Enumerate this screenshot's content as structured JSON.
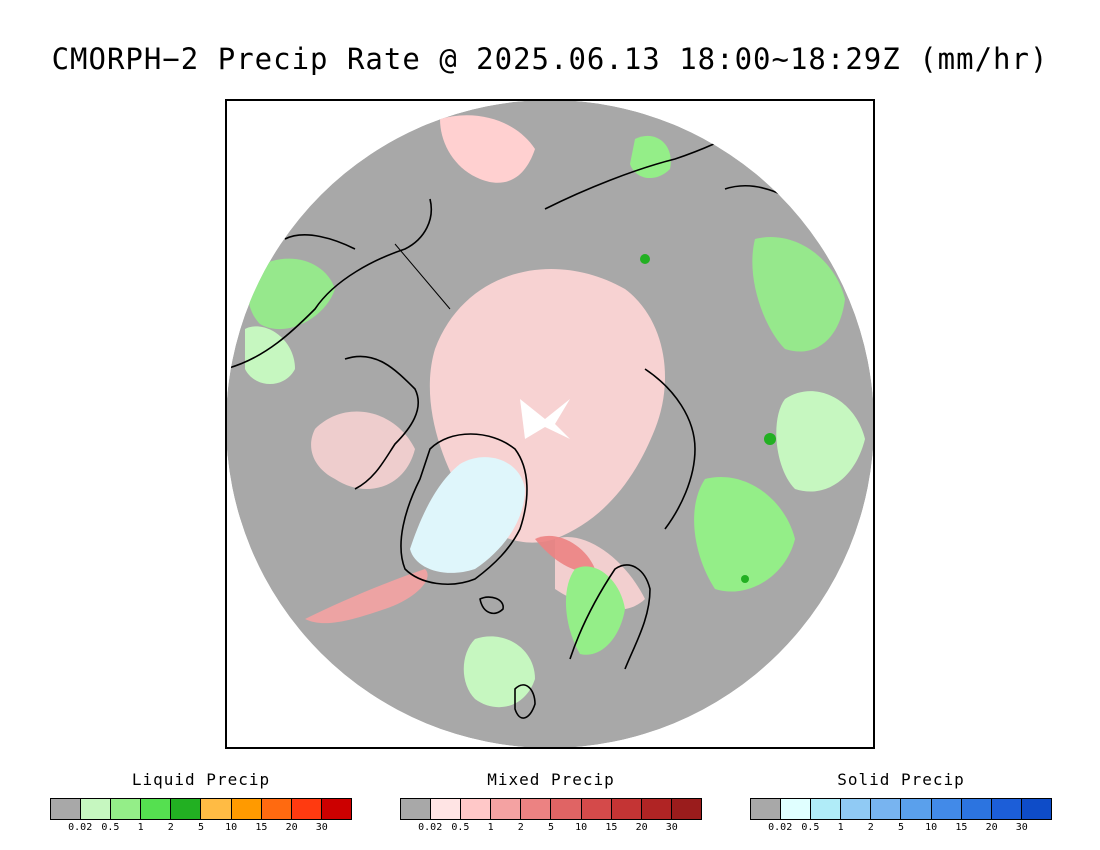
{
  "title": "CMORPH−2 Precip Rate @ 2025.06.13 18:00~18:29Z (mm/hr)",
  "map": {
    "projection": "north polar stereographic",
    "background_no_precip_color": "#a8a8a8",
    "region_labels": []
  },
  "legends": [
    {
      "name": "liquid",
      "title": "Liquid Precip",
      "colors": [
        "#a8a8a8",
        "#c6f7c0",
        "#94ee88",
        "#55e050",
        "#22b022",
        "#ffbb44",
        "#ff9a00",
        "#ff6a10",
        "#ff3a10",
        "#cc0000"
      ],
      "ticks": [
        "0.02",
        "0.5",
        "1",
        "2",
        "5",
        "10",
        "15",
        "20",
        "30"
      ]
    },
    {
      "name": "mixed",
      "title": "Mixed Precip",
      "colors": [
        "#a8a8a8",
        "#ffe4e4",
        "#ffc8c8",
        "#f4a2a2",
        "#ec8282",
        "#e06464",
        "#d44a4a",
        "#c43434",
        "#b02424",
        "#9a1c1c"
      ],
      "ticks": [
        "0.02",
        "0.5",
        "1",
        "2",
        "5",
        "10",
        "15",
        "20",
        "30"
      ]
    },
    {
      "name": "solid",
      "title": "Solid Precip",
      "colors": [
        "#a8a8a8",
        "#e0ffff",
        "#b0ecf8",
        "#90caf4",
        "#78b4f0",
        "#5aa0ec",
        "#428ae8",
        "#2c74e0",
        "#1c5ed8",
        "#0e4cc8"
      ],
      "ticks": [
        "0.02",
        "0.5",
        "1",
        "2",
        "5",
        "10",
        "15",
        "20",
        "30"
      ]
    }
  ]
}
